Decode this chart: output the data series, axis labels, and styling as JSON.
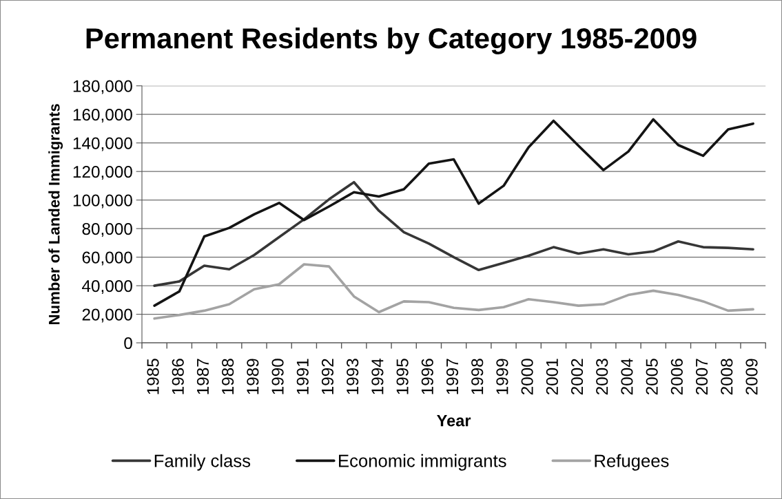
{
  "chart_data": {
    "type": "line",
    "title": "Permanent Residents by Category 1985-2009",
    "xlabel": "Year",
    "ylabel": "Number of Landed Immigrants",
    "categories": [
      "1985",
      "1986",
      "1987",
      "1988",
      "1989",
      "1990",
      "1991",
      "1992",
      "1993",
      "1994",
      "1995",
      "1996",
      "1997",
      "1998",
      "1999",
      "2000",
      "2001",
      "2002",
      "2003",
      "2004",
      "2005",
      "2006",
      "2007",
      "2008",
      "2009"
    ],
    "series": [
      {
        "name": "Family class",
        "color": "#363636",
        "values": [
          40000,
          43000,
          54000,
          51500,
          61500,
          74000,
          86500,
          100500,
          112500,
          92500,
          77500,
          69500,
          60000,
          51000,
          56000,
          61000,
          67000,
          62500,
          65500,
          62000,
          64000,
          71000,
          67000,
          66500,
          65500
        ]
      },
      {
        "name": "Economic immigrants",
        "color": "#141414",
        "values": [
          26000,
          36000,
          74500,
          80500,
          90000,
          98000,
          86000,
          95500,
          105500,
          102500,
          107500,
          125500,
          128500,
          97500,
          110000,
          137000,
          155500,
          138000,
          121000,
          134000,
          156500,
          138500,
          131000,
          149500,
          153500
        ]
      },
      {
        "name": "Refugees",
        "color": "#a3a3a3",
        "values": [
          17000,
          19500,
          22500,
          27000,
          37500,
          41000,
          55000,
          53500,
          32500,
          21500,
          29000,
          28500,
          24500,
          23000,
          25000,
          30500,
          28500,
          26000,
          27000,
          33500,
          36500,
          33500,
          29000,
          22500,
          23500
        ]
      }
    ],
    "ylim": [
      0,
      180000
    ],
    "yticks": [
      0,
      {
        "value": 20000,
        "label": "20,000"
      },
      {
        "value": 40000,
        "label": "40,000"
      },
      {
        "value": 60000,
        "label": "60,000"
      },
      {
        "value": 80000,
        "label": "80,000"
      },
      {
        "value": 100000,
        "label": "100,000"
      },
      {
        "value": 120000,
        "label": "120,000"
      },
      {
        "value": 140000,
        "label": "140,000"
      },
      {
        "value": 160000,
        "label": "160,000"
      },
      {
        "value": 180000,
        "label": "180,000"
      }
    ],
    "grid": "y",
    "legend": "bottom"
  }
}
